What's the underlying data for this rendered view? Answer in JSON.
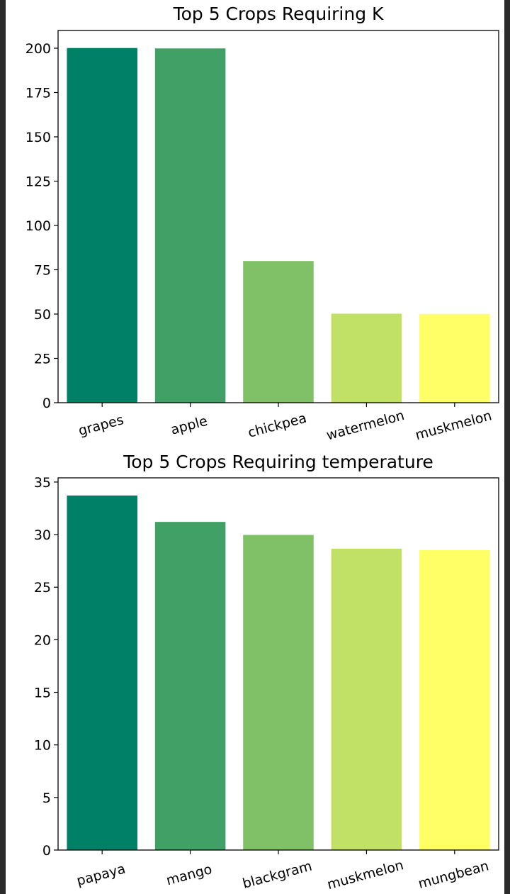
{
  "chart_data": [
    {
      "type": "bar",
      "title": "Top 5 Crops Requiring K",
      "xlabel": "",
      "ylabel": "",
      "categories": [
        "grapes",
        "apple",
        "chickpea",
        "watermelon",
        "muskmelon"
      ],
      "values": [
        200.11,
        199.89,
        79.92,
        50.22,
        50.08
      ],
      "ylim": [
        0,
        210
      ],
      "yticks": [
        0,
        25,
        50,
        75,
        100,
        125,
        150,
        175,
        200
      ],
      "colors": [
        "#008066",
        "#40a066",
        "#80c066",
        "#c0e066",
        "#ffff66"
      ],
      "grid": false,
      "xtick_rotation": 15
    },
    {
      "type": "bar",
      "title": "Top 5 Crops Requiring temperature",
      "xlabel": "",
      "ylabel": "",
      "categories": [
        "papaya",
        "mango",
        "blackgram",
        "muskmelon",
        "mungbean"
      ],
      "values": [
        33.72,
        31.21,
        29.97,
        28.66,
        28.53
      ],
      "ylim": [
        0,
        35.4
      ],
      "yticks": [
        0,
        5,
        10,
        15,
        20,
        25,
        30,
        35
      ],
      "colors": [
        "#008066",
        "#40a066",
        "#80c066",
        "#c0e066",
        "#ffff66"
      ],
      "grid": false,
      "xtick_rotation": 15
    }
  ]
}
